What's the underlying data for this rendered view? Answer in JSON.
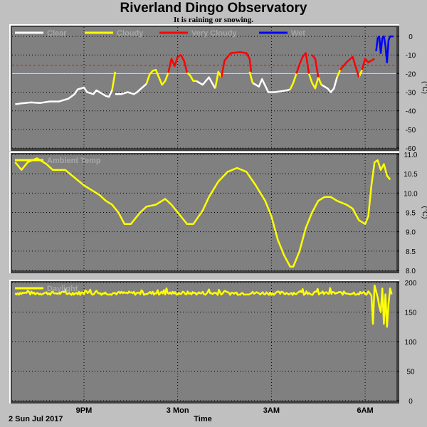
{
  "title": "Riverland Dingo Observatory",
  "subtitle": "It is raining or snowing.",
  "footer": {
    "date": "2 Sun Jul 2017",
    "xlabel": "Time"
  },
  "x_ticks": [
    {
      "label": "9PM",
      "t": 21
    },
    {
      "label": "3 Mon",
      "t": 24
    },
    {
      "label": "3AM",
      "t": 27
    },
    {
      "label": "6AM",
      "t": 30
    }
  ],
  "colors": {
    "panel_bg": "#808080",
    "grid": "#000000",
    "clear": "#ffffff",
    "cloudy": "#ffff00",
    "very_cloudy": "#ff0000",
    "wet": "#0000ff",
    "temp": "#ffff00",
    "daylight": "#ffff00",
    "threshold_cloudy": "#ffff00",
    "threshold_very_cloudy": "#ff0000"
  },
  "chart_data": [
    {
      "type": "line",
      "panel": "cloud",
      "unit": "(°C)",
      "ylim": [
        -60,
        5
      ],
      "yticks": [
        0,
        -10,
        -20,
        -30,
        -40,
        -50,
        -60
      ],
      "xlim": [
        18.7,
        31.0
      ],
      "grid": true,
      "legend_placement": "top-left",
      "legend": [
        {
          "name": "Clear",
          "color": "#ffffff"
        },
        {
          "name": "Cloudy",
          "color": "#ffff00"
        },
        {
          "name": "Very Cloudy",
          "color": "#ff0000"
        },
        {
          "name": "Wet",
          "color": "#0000ff"
        }
      ],
      "thresholds": [
        {
          "value": -15.5,
          "color": "#ff0000",
          "style": "dashed"
        },
        {
          "value": -20,
          "color": "#ffff00",
          "style": "solid"
        }
      ],
      "series": [
        {
          "name": "Clear",
          "color": "#ffffff",
          "segments": [
            [
              [
                18.8,
                -36.5
              ],
              [
                19.0,
                -36
              ],
              [
                19.3,
                -35.5
              ],
              [
                19.6,
                -35.8
              ],
              [
                19.9,
                -35
              ],
              [
                20.2,
                -35
              ],
              [
                20.5,
                -33.5
              ],
              [
                20.7,
                -31
              ],
              [
                20.8,
                -28.5
              ],
              [
                21.0,
                -27.5
              ],
              [
                21.1,
                -30
              ],
              [
                21.3,
                -31
              ],
              [
                21.4,
                -29
              ],
              [
                21.6,
                -31
              ],
              [
                21.7,
                -32
              ],
              [
                21.8,
                -32.5
              ],
              [
                21.9,
                -29
              ]
            ],
            [
              [
                22.0,
                -31
              ],
              [
                22.2,
                -31
              ],
              [
                22.4,
                -30
              ],
              [
                22.6,
                -31
              ],
              [
                22.7,
                -30
              ],
              [
                22.9,
                -27
              ],
              [
                23.0,
                -25.5
              ]
            ],
            [
              [
                24.6,
                -24
              ],
              [
                24.8,
                -26
              ],
              [
                25.0,
                -22
              ],
              [
                25.1,
                -25
              ],
              [
                25.2,
                -28
              ]
            ],
            [
              [
                26.4,
                -25
              ],
              [
                26.6,
                -27
              ],
              [
                26.7,
                -23
              ],
              [
                26.9,
                -30
              ],
              [
                27.1,
                -30
              ],
              [
                27.3,
                -29.5
              ],
              [
                27.5,
                -29
              ],
              [
                27.6,
                -28.5
              ]
            ],
            [
              [
                28.6,
                -26
              ],
              [
                28.8,
                -28
              ],
              [
                28.9,
                -30
              ],
              [
                29.0,
                -28
              ],
              [
                29.1,
                -22
              ]
            ]
          ]
        },
        {
          "name": "Cloudy",
          "color": "#ffff00",
          "segments": [
            [
              [
                21.9,
                -29
              ],
              [
                22.0,
                -19
              ]
            ],
            [
              [
                23.0,
                -25.5
              ],
              [
                23.1,
                -20.5
              ],
              [
                23.2,
                -18.5
              ],
              [
                23.3,
                -18
              ],
              [
                23.4,
                -22
              ],
              [
                23.5,
                -26
              ],
              [
                23.6,
                -24
              ],
              [
                23.7,
                -19.5
              ]
            ],
            [
              [
                24.3,
                -19.5
              ],
              [
                24.4,
                -21
              ],
              [
                24.5,
                -24
              ],
              [
                24.6,
                -24
              ]
            ],
            [
              [
                25.2,
                -28
              ],
              [
                25.3,
                -19
              ],
              [
                25.4,
                -22
              ]
            ],
            [
              [
                26.3,
                -19
              ],
              [
                26.4,
                -25
              ]
            ],
            [
              [
                27.6,
                -28.5
              ],
              [
                27.7,
                -25
              ],
              [
                27.8,
                -20
              ]
            ],
            [
              [
                28.2,
                -20
              ],
              [
                28.3,
                -25
              ],
              [
                28.4,
                -28
              ],
              [
                28.5,
                -22
              ],
              [
                28.6,
                -26
              ]
            ],
            [
              [
                29.1,
                -22
              ],
              [
                29.2,
                -18
              ]
            ],
            [
              [
                29.8,
                -22
              ],
              [
                29.9,
                -18
              ]
            ]
          ]
        },
        {
          "name": "Very Cloudy",
          "color": "#ff0000",
          "segments": [
            [
              [
                23.7,
                -19.5
              ],
              [
                23.8,
                -12
              ],
              [
                23.9,
                -16
              ],
              [
                24.0,
                -11
              ],
              [
                24.1,
                -10
              ],
              [
                24.2,
                -13
              ],
              [
                24.3,
                -19.5
              ]
            ],
            [
              [
                25.4,
                -22
              ],
              [
                25.5,
                -13
              ],
              [
                25.7,
                -9
              ],
              [
                26.0,
                -8.5
              ],
              [
                26.2,
                -9
              ],
              [
                26.3,
                -12
              ],
              [
                26.35,
                -19
              ]
            ],
            [
              [
                27.8,
                -20
              ],
              [
                27.9,
                -15
              ],
              [
                28.0,
                -11
              ],
              [
                28.1,
                -9
              ],
              [
                28.2,
                -20
              ]
            ],
            [
              [
                28.3,
                -10
              ],
              [
                28.4,
                -12
              ],
              [
                28.5,
                -22
              ]
            ],
            [
              [
                29.2,
                -18
              ],
              [
                29.4,
                -14
              ],
              [
                29.6,
                -11
              ],
              [
                29.8,
                -22
              ]
            ],
            [
              [
                29.9,
                -18
              ],
              [
                30.0,
                -12
              ],
              [
                30.1,
                -14
              ],
              [
                30.3,
                -12
              ]
            ]
          ]
        },
        {
          "name": "Wet",
          "color": "#0000ff",
          "segments": [
            [
              [
                30.35,
                -8
              ],
              [
                30.4,
                -1
              ],
              [
                30.45,
                0
              ],
              [
                30.5,
                -9
              ],
              [
                30.55,
                -1
              ],
              [
                30.6,
                0
              ],
              [
                30.65,
                -5
              ],
              [
                30.7,
                -14
              ],
              [
                30.75,
                -2
              ],
              [
                30.8,
                0
              ],
              [
                30.9,
                0
              ]
            ]
          ]
        }
      ]
    },
    {
      "type": "line",
      "panel": "temp",
      "unit": "(°C)",
      "ylim": [
        8.0,
        11.0
      ],
      "yticks": [
        11.0,
        10.5,
        10.0,
        9.5,
        9.0,
        8.5,
        8.0
      ],
      "xlim": [
        18.7,
        31.0
      ],
      "grid": true,
      "legend_placement": "top-left",
      "legend": [
        {
          "name": "Ambient Temp",
          "color": "#ffff00"
        }
      ],
      "series": [
        {
          "name": "Ambient Temp",
          "color": "#ffff00",
          "points": [
            [
              18.8,
              10.8
            ],
            [
              19.0,
              10.6
            ],
            [
              19.2,
              10.8
            ],
            [
              19.5,
              10.9
            ],
            [
              19.8,
              10.75
            ],
            [
              20.0,
              10.6
            ],
            [
              20.4,
              10.6
            ],
            [
              20.7,
              10.4
            ],
            [
              21.0,
              10.2
            ],
            [
              21.3,
              10.05
            ],
            [
              21.5,
              9.95
            ],
            [
              21.7,
              9.8
            ],
            [
              21.9,
              9.7
            ],
            [
              22.1,
              9.5
            ],
            [
              22.3,
              9.2
            ],
            [
              22.5,
              9.2
            ],
            [
              22.8,
              9.5
            ],
            [
              23.0,
              9.65
            ],
            [
              23.3,
              9.7
            ],
            [
              23.6,
              9.85
            ],
            [
              23.8,
              9.7
            ],
            [
              24.0,
              9.5
            ],
            [
              24.3,
              9.2
            ],
            [
              24.5,
              9.2
            ],
            [
              24.8,
              9.55
            ],
            [
              25.0,
              9.9
            ],
            [
              25.3,
              10.3
            ],
            [
              25.6,
              10.55
            ],
            [
              25.9,
              10.65
            ],
            [
              26.2,
              10.55
            ],
            [
              26.5,
              10.2
            ],
            [
              26.8,
              9.8
            ],
            [
              27.0,
              9.4
            ],
            [
              27.2,
              8.8
            ],
            [
              27.4,
              8.4
            ],
            [
              27.6,
              8.1
            ],
            [
              27.7,
              8.1
            ],
            [
              27.9,
              8.5
            ],
            [
              28.1,
              9.1
            ],
            [
              28.3,
              9.5
            ],
            [
              28.5,
              9.8
            ],
            [
              28.7,
              9.9
            ],
            [
              28.9,
              9.9
            ],
            [
              29.1,
              9.8
            ],
            [
              29.4,
              9.7
            ],
            [
              29.6,
              9.6
            ],
            [
              29.8,
              9.3
            ],
            [
              30.0,
              9.2
            ],
            [
              30.1,
              9.4
            ],
            [
              30.2,
              10.2
            ],
            [
              30.3,
              10.8
            ],
            [
              30.4,
              10.85
            ],
            [
              30.5,
              10.6
            ],
            [
              30.6,
              10.75
            ],
            [
              30.7,
              10.45
            ],
            [
              30.8,
              10.35
            ]
          ]
        }
      ]
    },
    {
      "type": "line",
      "panel": "daylight",
      "unit": "",
      "ylim": [
        0,
        200
      ],
      "yticks": [
        200,
        150,
        100,
        50,
        0
      ],
      "xlim": [
        18.7,
        31.0
      ],
      "grid": true,
      "legend_placement": "top-left",
      "legend": [
        {
          "name": "Daylight",
          "color": "#ffff00"
        }
      ],
      "series": [
        {
          "name": "Daylight",
          "color": "#ffff00",
          "base": 182,
          "noise": 6,
          "points": [
            [
              30.1,
              185
            ],
            [
              30.2,
              178
            ],
            [
              30.25,
              130
            ],
            [
              30.3,
              195
            ],
            [
              30.4,
              175
            ],
            [
              30.45,
              160
            ],
            [
              30.5,
              150
            ],
            [
              30.55,
              190
            ],
            [
              30.6,
              130
            ],
            [
              30.65,
              180
            ],
            [
              30.7,
              125
            ],
            [
              30.75,
              165
            ],
            [
              30.8,
              190
            ],
            [
              30.85,
              180
            ]
          ]
        }
      ]
    }
  ]
}
